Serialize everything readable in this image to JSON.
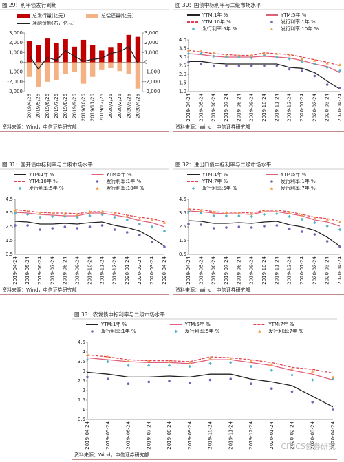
{
  "watermark": "CITICS债券研究",
  "chart_data": [
    {
      "type": "bar",
      "title": "图 29：利率债发行到期",
      "source": "资料来源：Wind，中信证券研究部",
      "categories": [
        "2019/4/26",
        "2019/5/26",
        "2019/6/26",
        "2019/7/26",
        "2019/8/26",
        "2019/9/26",
        "2019/10/26",
        "2019/11/26",
        "2019/12/26",
        "2020/1/26",
        "2020/2/26",
        "2020/3/26",
        "2020/4/26"
      ],
      "series": [
        {
          "name": "总发行量(亿元)",
          "color": "#c00000",
          "style": "bar",
          "values": [
            2200,
            1800,
            2500,
            2000,
            2400,
            1600,
            2300,
            1800,
            1200,
            1500,
            2000,
            2800,
            2600
          ]
        },
        {
          "name": "总偿还量(亿元)",
          "color": "#f4b183",
          "style": "bar",
          "values": [
            -1500,
            -2500,
            -2000,
            -1800,
            -1200,
            -1000,
            -2200,
            -1500,
            -800,
            -600,
            -900,
            -1200,
            -2700
          ]
        },
        {
          "name": "净融资额(右，亿元)",
          "color": "#222222",
          "style": "line",
          "axis": "y2",
          "values": [
            700,
            -700,
            500,
            200,
            1200,
            600,
            100,
            300,
            400,
            900,
            1100,
            1600,
            -100
          ]
        }
      ],
      "ylim": [
        -3000,
        3000
      ],
      "yticks": [
        {
          "value": 3000,
          "label": "3,000"
        },
        {
          "value": 2000,
          "label": "2,000"
        },
        {
          "value": 1000,
          "label": "1,000"
        },
        0,
        {
          "value": -1000,
          "label": "-1,000"
        },
        {
          "value": -2000,
          "label": "-2,000"
        },
        {
          "value": -3000,
          "label": "-3,000"
        }
      ],
      "y2lim": [
        -3000,
        3000
      ],
      "y2ticks": [
        {
          "value": 3000,
          "label": "3,000"
        },
        {
          "value": 2000,
          "label": "2,000"
        },
        {
          "value": 1000,
          "label": "1,000"
        },
        0,
        {
          "value": -1000,
          "label": "-1,000"
        },
        {
          "value": -2000,
          "label": "-2,000"
        },
        {
          "value": -3000,
          "label": "-3,000"
        }
      ]
    },
    {
      "type": "line",
      "title": "图 30：国债中标利率与二级市场水平",
      "source": "资料来源：Wind，中信证券研究部",
      "categories": [
        "2019-04-24",
        "2019-05-24",
        "2019-06-24",
        "2019-07-24",
        "2019-08-24",
        "2019-09-24",
        "2019-10-24",
        "2019-11-24",
        "2019-12-24",
        "2020-01-24",
        "2020-02-24",
        "2020-03-24",
        "2020-04-24"
      ],
      "series": [
        {
          "name": "YTM:1年 %",
          "color": "#222222",
          "style": "line",
          "values": [
            2.75,
            2.75,
            2.65,
            2.6,
            2.6,
            2.6,
            2.6,
            2.6,
            2.4,
            2.35,
            2.1,
            1.6,
            1.15
          ]
        },
        {
          "name": "YTM:5年 %",
          "color": "#e0607a",
          "style": "line",
          "values": [
            3.2,
            3.15,
            3.05,
            3.0,
            3.0,
            3.0,
            3.05,
            3.0,
            2.95,
            2.8,
            2.6,
            2.45,
            2.1
          ]
        },
        {
          "name": "YTM:10年 %",
          "color": "#e04050",
          "style": "dashed",
          "values": [
            3.4,
            3.3,
            3.2,
            3.15,
            3.1,
            3.1,
            3.25,
            3.2,
            3.15,
            3.0,
            2.85,
            2.7,
            2.5
          ]
        },
        {
          "name": "发行利率:1年 %",
          "color": "#7b5fb5",
          "style": "circle",
          "values": [
            2.7,
            2.6,
            2.5,
            2.5,
            2.5,
            2.5,
            2.5,
            2.5,
            2.3,
            2.2,
            1.9,
            1.4,
            1.2
          ]
        },
        {
          "name": "发行利率:5年 %",
          "color": "#4fb3c9",
          "style": "diamond",
          "values": [
            3.2,
            3.2,
            3.05,
            3.0,
            3.0,
            2.95,
            3.1,
            3.0,
            2.9,
            2.75,
            2.6,
            2.4,
            2.2
          ]
        },
        {
          "name": "发行利率:10年 %",
          "color": "#f39c3c",
          "style": "triangle",
          "values": [
            3.4,
            3.35,
            3.25,
            3.1,
            3.1,
            3.1,
            3.2,
            3.2,
            3.1,
            2.9,
            2.8,
            2.65,
            2.55
          ]
        }
      ],
      "ylim": [
        1,
        4
      ],
      "yticks": [
        {
          "value": 4,
          "label": "4.0"
        },
        3.5,
        {
          "value": 3,
          "label": "3.0"
        },
        2.5,
        {
          "value": 2,
          "label": "2.0"
        },
        1.5,
        {
          "value": 1,
          "label": "1.0"
        }
      ]
    },
    {
      "type": "line",
      "title": "图 31：国开债中标利率与二级市场水平",
      "source": "资料来源：Wind，中信证券研究部",
      "categories": [
        "2019-04-24",
        "2019-05-24",
        "2019-06-24",
        "2019-07-24",
        "2019-08-24",
        "2019-09-24",
        "2019-10-24",
        "2019-11-24",
        "2019-12-24",
        "2020-01-24",
        "2020-02-24",
        "2020-03-24",
        "2020-04-24"
      ],
      "series": [
        {
          "name": "YTM:1年 %",
          "color": "#222222",
          "style": "line",
          "values": [
            2.9,
            2.85,
            2.7,
            2.7,
            2.75,
            2.7,
            2.8,
            2.85,
            2.6,
            2.45,
            2.2,
            1.7,
            1.1
          ]
        },
        {
          "name": "YTM:5年 %",
          "color": "#e0607a",
          "style": "line",
          "values": [
            3.55,
            3.5,
            3.4,
            3.35,
            3.3,
            3.3,
            3.5,
            3.5,
            3.35,
            3.2,
            2.95,
            2.8,
            2.5
          ]
        },
        {
          "name": "YTM:10年 %",
          "color": "#e04050",
          "style": "dashed",
          "values": [
            3.75,
            3.65,
            3.55,
            3.5,
            3.5,
            3.45,
            3.6,
            3.6,
            3.55,
            3.35,
            3.2,
            3.1,
            2.85
          ]
        },
        {
          "name": "发行利率:1年 %",
          "color": "#7b5fb5",
          "style": "circle",
          "values": [
            2.6,
            2.6,
            2.3,
            2.4,
            2.5,
            2.4,
            2.5,
            2.6,
            2.3,
            2.1,
            1.9,
            1.4,
            1.05
          ]
        },
        {
          "name": "发行利率:5年 %",
          "color": "#4fb3c9",
          "style": "diamond",
          "values": [
            3.5,
            3.4,
            3.2,
            3.25,
            3.25,
            3.2,
            3.3,
            3.4,
            3.2,
            3.0,
            2.7,
            2.5,
            2.2
          ]
        },
        {
          "name": "发行利率:10年 %",
          "color": "#f39c3c",
          "style": "triangle",
          "values": [
            3.7,
            3.65,
            3.5,
            3.5,
            3.45,
            3.4,
            3.6,
            3.6,
            3.5,
            3.3,
            3.1,
            3.0,
            2.8
          ]
        }
      ],
      "ylim": [
        0.5,
        4.5
      ],
      "yticks": [
        4.5,
        3.5,
        2.5,
        1.5,
        0.5
      ]
    },
    {
      "type": "line",
      "title": "图 32：进出口债中标利率与二级市场水平",
      "source": "资料来源：Wind，中信证券研究部",
      "categories": [
        "2019-04-24",
        "2019-05-24",
        "2019-06-24",
        "2019-07-24",
        "2019-08-24",
        "2019-09-24",
        "2019-10-24",
        "2019-11-24",
        "2019-12-24",
        "2020-01-24",
        "2020-02-24",
        "2020-03-24",
        "2020-04-24"
      ],
      "series": [
        {
          "name": "YTM:1年 %",
          "color": "#222222",
          "style": "line",
          "values": [
            2.95,
            2.9,
            2.75,
            2.75,
            2.8,
            2.75,
            2.85,
            2.9,
            2.65,
            2.5,
            2.25,
            1.75,
            1.1
          ]
        },
        {
          "name": "YTM:5年 %",
          "color": "#e0607a",
          "style": "line",
          "values": [
            3.65,
            3.6,
            3.5,
            3.45,
            3.45,
            3.4,
            3.6,
            3.6,
            3.45,
            3.3,
            3.0,
            2.85,
            2.55
          ]
        },
        {
          "name": "YTM:7年 %",
          "color": "#e04050",
          "style": "dashed",
          "values": [
            3.8,
            3.75,
            3.6,
            3.55,
            3.55,
            3.5,
            3.7,
            3.7,
            3.6,
            3.4,
            3.2,
            3.1,
            2.9
          ]
        },
        {
          "name": "发行利率:1年 %",
          "color": "#7b5fb5",
          "style": "circle",
          "values": [
            2.7,
            2.65,
            2.4,
            2.45,
            2.5,
            2.45,
            2.55,
            2.6,
            2.35,
            2.15,
            1.95,
            1.45,
            1.05
          ]
        },
        {
          "name": "发行利率:5年 %",
          "color": "#4fb3c9",
          "style": "diamond",
          "values": [
            3.6,
            3.5,
            3.3,
            3.3,
            3.3,
            3.25,
            3.4,
            3.45,
            3.25,
            3.05,
            2.8,
            2.55,
            2.3
          ]
        },
        {
          "name": "发行利率:7年 %",
          "color": "#f39c3c",
          "style": "triangle",
          "values": [
            3.8,
            3.7,
            3.55,
            3.55,
            3.5,
            3.45,
            3.65,
            3.65,
            3.55,
            3.35,
            3.15,
            3.05,
            2.85
          ]
        }
      ],
      "ylim": [
        0.5,
        4.5
      ],
      "yticks": [
        4.5,
        3.5,
        2.5,
        1.5,
        0.5
      ]
    },
    {
      "type": "line",
      "title": "图 33：农发债中标利率与二级市场水平",
      "source": "资料来源：Wind，中信证券研究部",
      "categories": [
        "2019-04-24",
        "2019-05-24",
        "2019-06-24",
        "2019-07-24",
        "2019-08-24",
        "2019-09-24",
        "2019-10-24",
        "2019-11-24",
        "2019-12-24",
        "2020-01-24",
        "2020-02-24",
        "2020-03-24",
        "2020-04-24"
      ],
      "series": [
        {
          "name": "YTM:1年 %",
          "color": "#222222",
          "style": "line",
          "values": [
            2.95,
            2.85,
            2.7,
            2.7,
            2.75,
            2.7,
            2.85,
            2.85,
            2.6,
            2.45,
            2.25,
            1.7,
            1.15
          ]
        },
        {
          "name": "YTM:5年 %",
          "color": "#e0607a",
          "style": "line",
          "values": [
            3.7,
            3.6,
            3.5,
            3.45,
            3.45,
            3.4,
            3.6,
            3.6,
            3.45,
            3.3,
            3.05,
            2.85,
            2.55
          ]
        },
        {
          "name": "YTM:7年 %",
          "color": "#e04050",
          "style": "dashed",
          "values": [
            3.85,
            3.75,
            3.6,
            3.55,
            3.55,
            3.5,
            3.75,
            3.7,
            3.6,
            3.45,
            3.2,
            3.1,
            2.9
          ]
        },
        {
          "name": "发行利率:1年 %",
          "color": "#7b5fb5",
          "style": "circle",
          "values": [
            2.7,
            2.6,
            2.35,
            2.45,
            2.5,
            2.4,
            2.55,
            2.6,
            2.35,
            2.1,
            1.95,
            1.4,
            1.0
          ]
        },
        {
          "name": "发行利率:5年 %",
          "color": "#4fb3c9",
          "style": "diamond",
          "values": [
            3.6,
            3.5,
            3.3,
            3.3,
            3.3,
            3.25,
            3.4,
            3.45,
            3.25,
            3.05,
            2.8,
            2.55,
            2.6
          ]
        },
        {
          "name": "发行利率:7年 %",
          "color": "#f39c3c",
          "style": "triangle",
          "values": [
            3.85,
            3.75,
            3.55,
            3.55,
            3.5,
            3.45,
            3.7,
            3.65,
            3.55,
            3.35,
            3.15,
            3.0,
            2.7
          ]
        }
      ],
      "ylim": [
        0.5,
        4.5
      ],
      "yticks": [
        4.5,
        4,
        3.5,
        3,
        2.5,
        2,
        1.5,
        1,
        0.5
      ]
    }
  ]
}
